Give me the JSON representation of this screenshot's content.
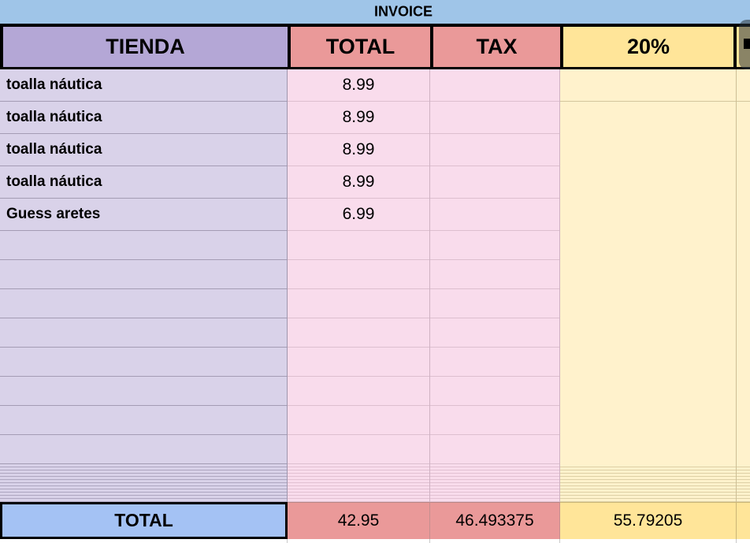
{
  "title": "INVOICE",
  "header": {
    "tienda": "TIENDA",
    "total": "TOTAL",
    "tax": "TAX",
    "pct": "20%"
  },
  "rows": [
    {
      "tienda": "toalla náutica",
      "total": "8.99",
      "tax": "",
      "pct": ""
    },
    {
      "tienda": "toalla náutica",
      "total": "8.99",
      "tax": "",
      "pct": ""
    },
    {
      "tienda": "toalla náutica",
      "total": "8.99",
      "tax": "",
      "pct": ""
    },
    {
      "tienda": "toalla náutica",
      "total": "8.99",
      "tax": "",
      "pct": ""
    },
    {
      "tienda": "Guess aretes",
      "total": "6.99",
      "tax": "",
      "pct": ""
    }
  ],
  "empty_row_count": 8,
  "collapsed_rows_band": true,
  "footer": {
    "label": "TOTAL",
    "total": "42.95",
    "tax": "46.493375",
    "pct": "55.79205"
  },
  "colors": {
    "banner_blue": "#9fc5e8",
    "header_purple": "#b4a7d6",
    "header_red": "#ea9999",
    "header_yellow": "#ffe599",
    "cell_purple": "#d9d2e9",
    "cell_pink": "#f9dcec",
    "cell_yellow": "#fff2cc",
    "footer_blue": "#a4c2f4",
    "border_black": "#000000"
  }
}
